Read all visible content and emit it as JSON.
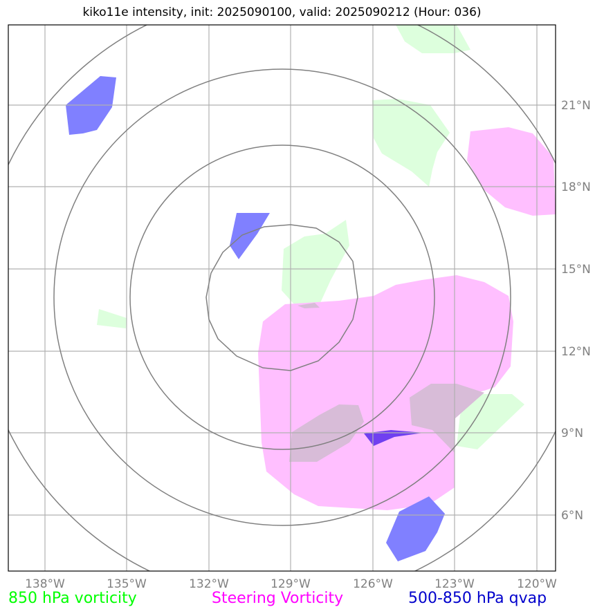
{
  "title": "kiko11e intensity, init: 2025090100, valid: 2025090212 (Hour: 036)",
  "longitude_labels": [
    "138°W",
    "135°W",
    "132°W",
    "129°W",
    "126°W",
    "123°W",
    "120°W"
  ],
  "latitude_labels": [
    "21°N",
    "18°N",
    "15°N",
    "12°N",
    "9°N",
    "6°N"
  ],
  "legend": [
    {
      "label": "850 hPa vorticity",
      "color": "#00ff00"
    },
    {
      "label": "Steering Vorticity",
      "color": "#ff00ff"
    },
    {
      "label": "500-850 hPa qvap",
      "color": "#0000cc"
    }
  ],
  "colors": {
    "vorticity_850": "#ddffdd",
    "steering_vorticity": "#ffbfff",
    "qvap": "#8080ff",
    "overlap": "#d8bcd8",
    "rings": "#808080",
    "grid": "#b0b0b0"
  }
}
